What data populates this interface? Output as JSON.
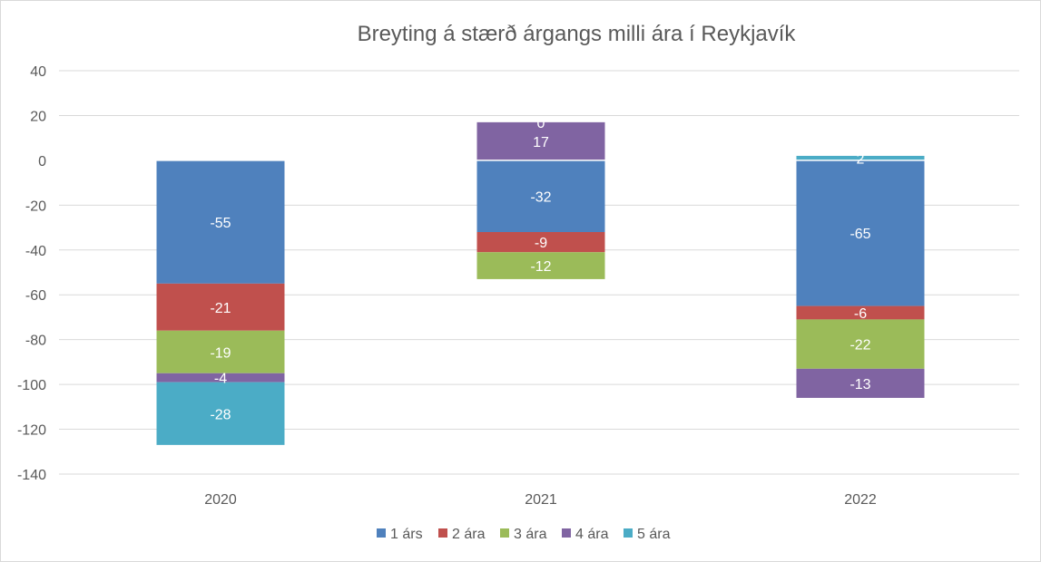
{
  "chart_data": {
    "type": "bar",
    "stacked": true,
    "title": "Breyting á stærð árgangs milli ára í Reykjavík",
    "xlabel": "",
    "ylabel": "",
    "ylim": [
      -140,
      40
    ],
    "yticks": [
      40,
      20,
      0,
      -20,
      -40,
      -60,
      -80,
      -100,
      -120,
      -140
    ],
    "grid": true,
    "legend_position": "bottom",
    "categories": [
      "2020",
      "2021",
      "2022"
    ],
    "series": [
      {
        "name": "1 árs",
        "color": "#4f81bd",
        "values": [
          -55,
          -32,
          -65
        ]
      },
      {
        "name": "2 ára",
        "color": "#c0504d",
        "values": [
          -21,
          -9,
          -6
        ]
      },
      {
        "name": "3 ára",
        "color": "#9bbb59",
        "values": [
          -19,
          -12,
          -22
        ]
      },
      {
        "name": "4 ára",
        "color": "#8064a2",
        "values": [
          -4,
          17,
          -13
        ]
      },
      {
        "name": "5 ára",
        "color": "#4bacc6",
        "values": [
          -28,
          0,
          2
        ]
      }
    ]
  }
}
